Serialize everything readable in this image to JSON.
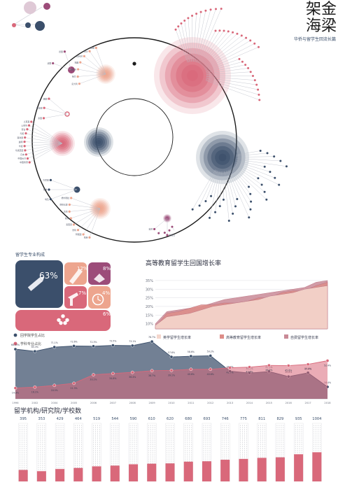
{
  "header": {
    "title_line1": "架金",
    "title_line2": "海梁",
    "subtitle": "华侨与留学生回流长篇"
  },
  "colors": {
    "navy": "#3b4f6b",
    "pink": "#d9687a",
    "peach": "#e9a38e",
    "salmon": "#eda58e",
    "purple": "#9c4c79",
    "lavender": "#9aa0bb",
    "grey": "#9aa0ad"
  },
  "section_labels": {
    "composition": "留学生专业构成",
    "growth": "高等教育留学生回国增长率",
    "institutions": "留学机构/研究院/学校数"
  },
  "legend_dots": [
    {
      "label": "回学院学生占比",
      "color": "#3b4f6b"
    },
    {
      "label": "学科专业占比",
      "color": "#d9687a"
    }
  ],
  "composition_tiles": [
    {
      "label": "63%",
      "icon": "pencil-icon",
      "color": "#3b4f6b"
    },
    {
      "label": "12%",
      "icon": "brush-icon",
      "color": "#eda58e"
    },
    {
      "label": "8%",
      "icon": "book-icon",
      "color": "#9c4c79"
    },
    {
      "label": "7%",
      "icon": "hammer-icon",
      "color": "#d9687a"
    },
    {
      "label": "4%",
      "icon": "clock-icon",
      "color": "#eda58e"
    },
    {
      "label": "6%",
      "icon": "stars-icon",
      "color": "#d9687a"
    }
  ],
  "chart_data": [
    {
      "type": "area",
      "title": "高等教育留学生回国增长率",
      "y_ticks": [
        "35%",
        "30%",
        "25%",
        "20%",
        "15%",
        "10%"
      ],
      "ylim": [
        7,
        37
      ],
      "series": [
        {
          "name": "自费留学生增长率",
          "color": "#c98a96",
          "values": [
            10,
            17,
            18,
            19,
            20,
            22,
            24,
            25,
            26,
            27,
            28,
            29,
            30,
            31,
            34,
            35
          ]
        },
        {
          "name": "高等教育留学生增长率",
          "color": "#dd8d88",
          "values": [
            8,
            16,
            17,
            19,
            21,
            21,
            22,
            22,
            23,
            25,
            25,
            28,
            29,
            29,
            32,
            34
          ]
        },
        {
          "name": "英学留学生增长率",
          "color": "#f4d6cc",
          "values": [
            9,
            14,
            15,
            16,
            18,
            20,
            21,
            22,
            23,
            24,
            26,
            27,
            28,
            30,
            31,
            32
          ]
        }
      ]
    },
    {
      "type": "area",
      "x": [
        "1996",
        "2002",
        "2004",
        "2005",
        "2006",
        "2007",
        "2008",
        "2009",
        "2010",
        "2011",
        "2012",
        "2013",
        "2014",
        "2015",
        "2016",
        "2017",
        "2018"
      ],
      "series": [
        {
          "name": "回学院学生占比",
          "color": "#3b4f6b",
          "values": [
            68.23,
            65.3,
            71.1,
            72.6,
            72.3,
            73.5,
            73.1,
            78.7,
            57.6,
            58.6,
            59.2,
            38.0,
            35.4,
            37.5,
            30.6,
            35.8,
            16.4
          ]
        },
        {
          "name": "学科专业占比",
          "color": "#d9687a",
          "values": [
            14.8,
            16.1,
            18.5,
            21.3,
            33.1,
            34.8,
            36.4,
            38.7,
            39.1,
            40.6,
            40.6,
            42.7,
            43.6,
            46.0,
            45.6,
            47.4,
            52.4
          ]
        }
      ],
      "point_labels": {
        "navy": [
          "68.23%",
          "65.3%",
          "71.1%",
          "72.6%",
          "72.3%",
          "73.5%",
          "73.1%",
          "78.7%",
          "57.6%",
          "58.6%",
          "59.2%",
          "38.0%",
          "35.4%",
          "37.5%",
          "30.6%",
          "35.8%",
          "16.4%"
        ],
        "pink": [
          "14.8%",
          "16.1%",
          "18.5%",
          "21.3%",
          "33.1%",
          "34.8%",
          "36.4%",
          "38.7%",
          "39.1%",
          "40.6%",
          "40.6%",
          "42.7%",
          "43.6%",
          "46.0%",
          "45.6%",
          "47.4%",
          "52.4%"
        ]
      },
      "ylim": [
        0,
        100
      ]
    },
    {
      "type": "bar",
      "title": "留学机构/研究院/学校数",
      "categories": [
        "1996",
        "2002",
        "2004",
        "2005",
        "2006",
        "2007",
        "2008",
        "2009",
        "2010",
        "2011",
        "2012",
        "2013",
        "2014",
        "2015",
        "2016",
        "2017",
        "2018"
      ],
      "values": [
        395,
        353,
        429,
        464,
        519,
        544,
        590,
        610,
        620,
        680,
        693,
        746,
        775,
        811,
        829,
        935,
        1004
      ],
      "value_labels": [
        "395",
        "353",
        "429",
        "464",
        "519",
        "544",
        "590",
        "610",
        "620",
        "680",
        "693",
        "746",
        "775",
        "811",
        "829",
        "935",
        "1004"
      ],
      "ylim": [
        0,
        2000
      ]
    }
  ],
  "radial_left": [
    {
      "color": "#9c4c79",
      "labels": [
        "法国",
        "德国"
      ]
    },
    {
      "color": "#eda58e",
      "labels": [
        "意大利",
        "荷兰",
        "西班牙",
        "瑞典",
        "比利时",
        "瑞士",
        "挪威"
      ]
    },
    {
      "color": "#d9687a",
      "labels": [
        "泰国",
        "新加坡",
        "韩国"
      ]
    },
    {
      "color": "#d9687a",
      "labels": [
        "中国香港",
        "中国台湾",
        "日本",
        "马来西亚",
        "印度",
        "越南",
        "菲律宾",
        "印尼",
        "蒙古",
        "以色列",
        "土耳其"
      ]
    },
    {
      "color": "#3b4f6b",
      "labels": [
        "埃及",
        "南非",
        "肯尼亚"
      ]
    },
    {
      "color": "#eda58e",
      "labels": [
        "巴西",
        "阿根廷",
        "智利",
        "墨西哥",
        "秘鲁",
        "古巴",
        "哥伦比亚",
        "委内瑞拉"
      ]
    },
    {
      "color": "#9c4c79",
      "labels": [
        "新西兰",
        "斐济"
      ]
    }
  ]
}
